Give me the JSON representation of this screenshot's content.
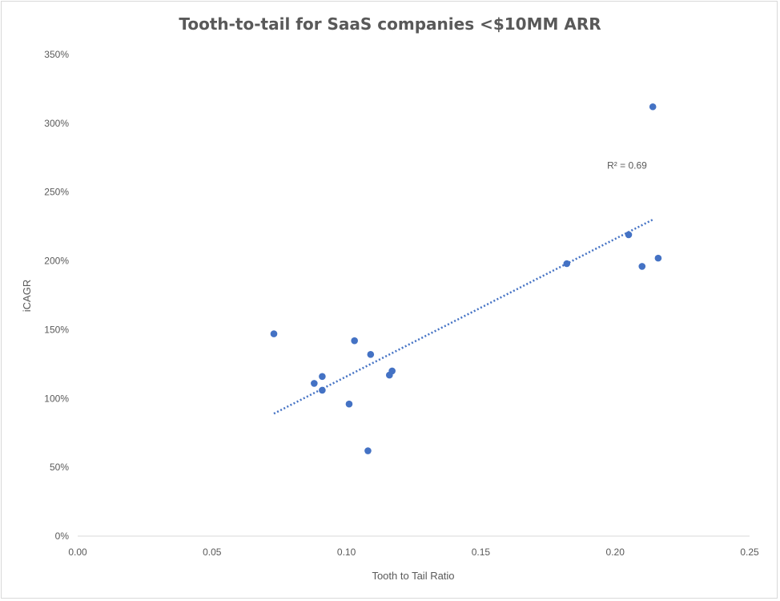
{
  "chart_data": {
    "type": "scatter",
    "title": "Tooth-to-tail for SaaS companies <$10MM ARR",
    "xlabel": "Tooth to Tail Ratio",
    "ylabel": "iCAGR",
    "xlim": [
      0,
      0.25
    ],
    "ylim": [
      0,
      3.5
    ],
    "x_ticks": [
      "0.00",
      "0.05",
      "0.10",
      "0.15",
      "0.20",
      "0.25"
    ],
    "x_tick_values": [
      0,
      0.05,
      0.1,
      0.15,
      0.2,
      0.25
    ],
    "y_ticks": [
      "0%",
      "50%",
      "100%",
      "150%",
      "200%",
      "250%",
      "300%",
      "350%"
    ],
    "y_tick_values": [
      0,
      0.5,
      1.0,
      1.5,
      2.0,
      2.5,
      3.0,
      3.5
    ],
    "grid": false,
    "legend": "none",
    "series": [
      {
        "x": [
          0.073,
          0.088,
          0.091,
          0.091,
          0.101,
          0.103,
          0.108,
          0.109,
          0.116,
          0.117,
          0.182,
          0.205,
          0.21,
          0.214,
          0.216
        ],
        "y": [
          1.47,
          1.11,
          1.16,
          1.06,
          0.96,
          1.42,
          0.62,
          1.32,
          1.17,
          1.2,
          1.98,
          2.19,
          1.96,
          3.12,
          2.02
        ],
        "color": "#4472c4"
      }
    ],
    "trendline": {
      "type": "linear",
      "style": "dotted",
      "color": "#4472c4",
      "x": [
        0.073,
        0.214
      ],
      "y": [
        0.89,
        2.3
      ]
    },
    "annotations": [
      {
        "text": "R² = 0.69",
        "x": 0.197,
        "y": 2.67
      }
    ]
  }
}
